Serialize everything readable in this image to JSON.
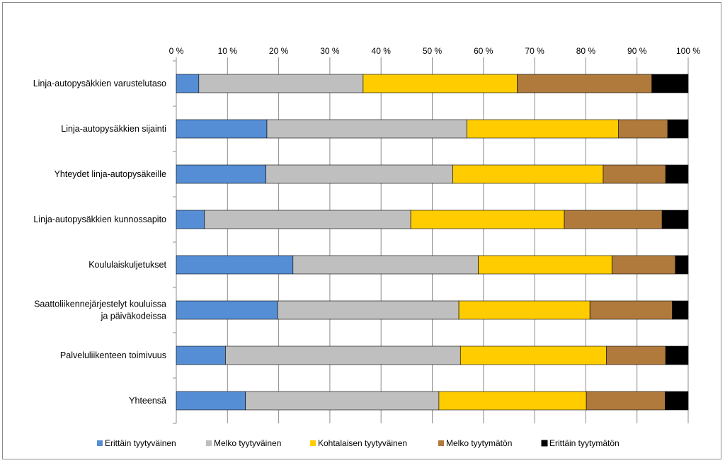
{
  "chart_data": {
    "type": "bar",
    "orientation": "horizontal",
    "stacked": "percent",
    "title": "",
    "xlabel": "",
    "ylabel": "",
    "xlim": [
      0,
      100
    ],
    "ticks": [
      0,
      10,
      20,
      30,
      40,
      50,
      60,
      70,
      80,
      90,
      100
    ],
    "tick_suffix": " %",
    "grid": true,
    "legend_position": "bottom",
    "categories": [
      [
        "Linja-autopysäkkien varustelutaso"
      ],
      [
        "Linja-autopysäkkien sijainti"
      ],
      [
        "Yhteydet linja-autopysäkeille"
      ],
      [
        "Linja-autopysäkkien kunnossapito"
      ],
      [
        "Koululaiskuljetukset"
      ],
      [
        "Saattoliikennejärjestelyt kouluissa",
        "ja päiväkodeissa"
      ],
      [
        "Palveluliikenteen toimivuus"
      ],
      [
        "Yhteensä"
      ]
    ],
    "series": [
      {
        "name": "Erittäin tyytyväinen",
        "color": "#558ed5",
        "values": [
          4.4,
          17.7,
          17.5,
          5.5,
          22.8,
          19.8,
          9.6,
          13.5
        ]
      },
      {
        "name": "Melko tyytyväinen",
        "color": "#bfbfbf",
        "values": [
          32.1,
          39.1,
          36.5,
          40.3,
          36.2,
          35.4,
          45.9,
          37.8
        ]
      },
      {
        "name": "Kohtalaisen tyytyväinen",
        "color": "#ffcc00",
        "values": [
          30.1,
          29.6,
          29.4,
          30.0,
          26.1,
          25.6,
          28.5,
          28.8
        ]
      },
      {
        "name": "Melko tyytymätön",
        "color": "#b07a3c",
        "values": [
          26.3,
          9.6,
          12.2,
          19.1,
          12.4,
          16.1,
          11.6,
          15.4
        ]
      },
      {
        "name": "Erittäin tyytymätön",
        "color": "#000000",
        "values": [
          7.1,
          4.0,
          4.4,
          5.1,
          2.5,
          3.1,
          4.4,
          4.5
        ]
      }
    ]
  }
}
